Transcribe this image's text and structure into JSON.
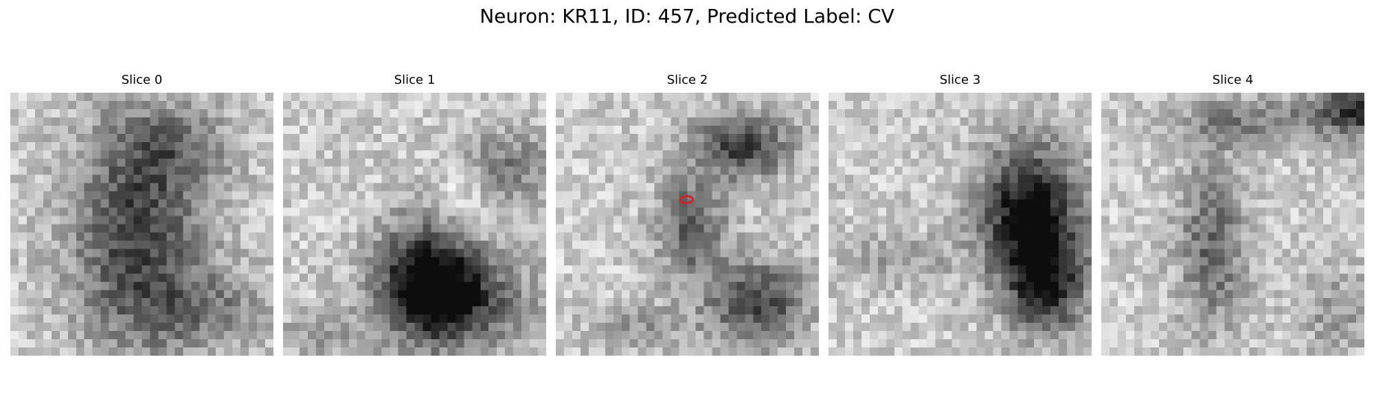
{
  "figure": {
    "title": "Neuron: KR11, ID: 457, Predicted Label: CV"
  },
  "slices": [
    {
      "title": "Slice 0",
      "has_marker": false
    },
    {
      "title": "Slice 1",
      "has_marker": false
    },
    {
      "title": "Slice 2",
      "has_marker": true
    },
    {
      "title": "Slice 3",
      "has_marker": false
    },
    {
      "title": "Slice 4",
      "has_marker": false
    }
  ],
  "colors": {
    "colormap": "grayscale",
    "marker": "#d62020"
  }
}
